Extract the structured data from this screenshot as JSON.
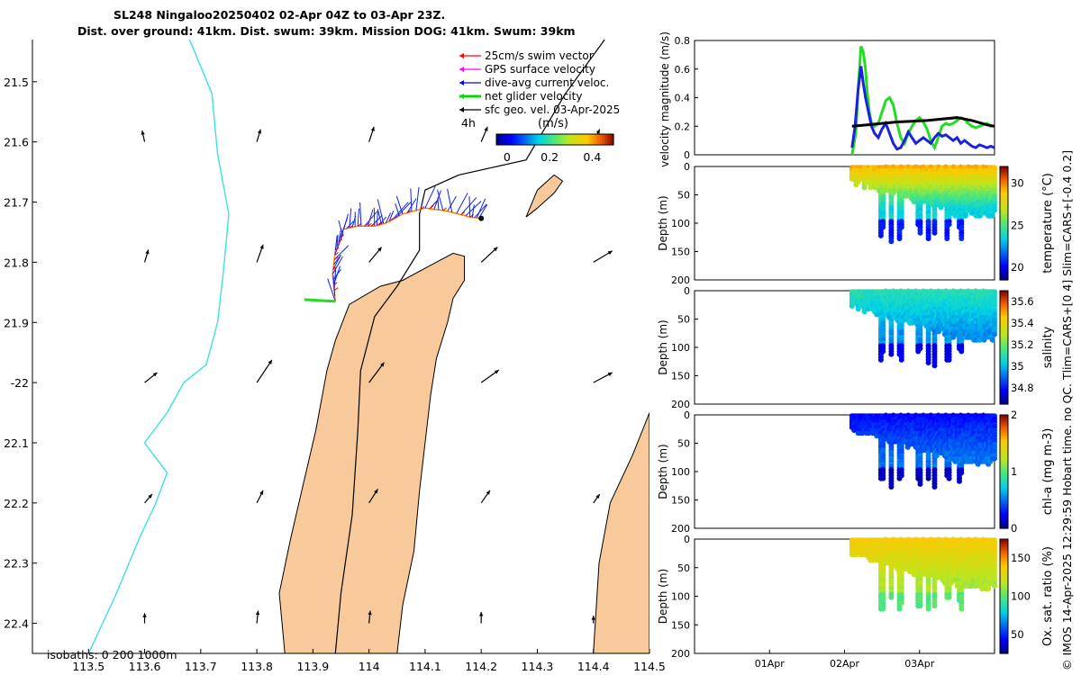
{
  "chart_data": [
    {
      "type": "map",
      "title_line1": "SL248 Ningaloo20250402 02-Apr 04Z to 03-Apr 23Z.",
      "title_line2": "Dist. over ground: 41km. Dist. swum: 39km. Mission DOG: 41km. Swum: 39km",
      "xlim": [
        113.4,
        114.5
      ],
      "ylim": [
        -22.45,
        -21.43
      ],
      "x_ticks": [
        113.5,
        113.6,
        113.7,
        113.8,
        113.9,
        114,
        114.1,
        114.2,
        114.3,
        114.4,
        114.5
      ],
      "x_tick_labels": [
        "113.5",
        "113.6",
        "113.7",
        "113.8",
        "113.9",
        "114",
        "114.1",
        "114.2",
        "114.3",
        "114.4",
        "114.5"
      ],
      "y_ticks": [
        -21.5,
        -21.6,
        -21.7,
        -21.8,
        -21.9,
        -22,
        -22.1,
        -22.2,
        -22.3,
        -22.4
      ],
      "y_tick_labels": [
        "21.5",
        "21.6",
        "21.7",
        "21.8",
        "21.9",
        "-22",
        "22.1",
        "22.2",
        "22.3",
        "22.4"
      ],
      "legend": [
        {
          "label": "25cm/s swim vector",
          "color": "#ff0000"
        },
        {
          "label": "GPS surface velocity",
          "color": "#ff00ff"
        },
        {
          "label": "dive-avg current veloc.",
          "color": "#0000ff"
        },
        {
          "label": "net glider velocity",
          "color": "#00dd00"
        },
        {
          "label": "sfc geo. vel. 03-Apr-2025",
          "color": "#000000"
        }
      ],
      "legend_note": "4h",
      "colorbar_label": "(m/s)",
      "colorbar_ticks": [
        0,
        0.2,
        0.4
      ],
      "colorbar_tick_labels": [
        "0",
        "0.2",
        "0.4"
      ],
      "colorbar_range": [
        -0.05,
        0.5
      ],
      "isobath_label": "isobaths: 0   200  1000m",
      "coastline_color": "#f8c99a",
      "isobath_200_color": "#000000",
      "isobath_1000_color": "#3ee0e0",
      "coast_polygon": [
        [
          113.85,
          -22.45
        ],
        [
          113.84,
          -22.35
        ],
        [
          113.86,
          -22.26
        ],
        [
          113.88,
          -22.18
        ],
        [
          113.905,
          -22.08
        ],
        [
          113.925,
          -21.98
        ],
        [
          113.94,
          -21.93
        ],
        [
          113.965,
          -21.87
        ],
        [
          114.02,
          -21.84
        ],
        [
          114.06,
          -21.83
        ],
        [
          114.11,
          -21.805
        ],
        [
          114.15,
          -21.785
        ],
        [
          114.17,
          -21.79
        ],
        [
          114.17,
          -21.83
        ],
        [
          114.15,
          -21.86
        ],
        [
          114.14,
          -21.9
        ],
        [
          114.12,
          -21.96
        ],
        [
          114.11,
          -22.02
        ],
        [
          114.1,
          -22.1
        ],
        [
          114.09,
          -22.18
        ],
        [
          114.08,
          -22.28
        ],
        [
          114.06,
          -22.37
        ],
        [
          114.05,
          -22.45
        ]
      ],
      "island_polygon": [
        [
          114.28,
          -21.725
        ],
        [
          114.3,
          -21.68
        ],
        [
          114.33,
          -21.655
        ],
        [
          114.345,
          -21.665
        ],
        [
          114.33,
          -21.685
        ],
        [
          114.3,
          -21.71
        ]
      ],
      "isobath_200": [
        [
          113.94,
          -22.45
        ],
        [
          113.95,
          -22.35
        ],
        [
          113.97,
          -22.22
        ],
        [
          113.98,
          -22.08
        ],
        [
          113.985,
          -21.98
        ],
        [
          114.01,
          -21.89
        ],
        [
          114.05,
          -21.84
        ],
        [
          114.09,
          -21.78
        ],
        [
          114.09,
          -21.72
        ],
        [
          114.1,
          -21.68
        ],
        [
          114.16,
          -21.655
        ],
        [
          114.28,
          -21.63
        ],
        [
          114.35,
          -21.52
        ],
        [
          114.42,
          -21.43
        ]
      ],
      "isobath_1000": [
        [
          113.5,
          -22.45
        ],
        [
          113.55,
          -22.35
        ],
        [
          113.59,
          -22.26
        ],
        [
          113.62,
          -22.2
        ],
        [
          113.64,
          -22.15
        ],
        [
          113.6,
          -22.1
        ],
        [
          113.64,
          -22.05
        ],
        [
          113.67,
          -22.0
        ],
        [
          113.71,
          -21.97
        ],
        [
          113.73,
          -21.9
        ],
        [
          113.74,
          -21.82
        ],
        [
          113.75,
          -21.72
        ],
        [
          113.73,
          -21.62
        ],
        [
          113.72,
          -21.52
        ],
        [
          113.68,
          -21.43
        ]
      ],
      "glider_track": [
        [
          113.94,
          -21.865
        ],
        [
          113.935,
          -21.82
        ],
        [
          113.94,
          -21.78
        ],
        [
          113.955,
          -21.745
        ],
        [
          113.98,
          -21.74
        ],
        [
          114.01,
          -21.74
        ],
        [
          114.03,
          -21.735
        ],
        [
          114.06,
          -21.72
        ],
        [
          114.1,
          -21.71
        ],
        [
          114.14,
          -21.715
        ],
        [
          114.18,
          -21.725
        ],
        [
          114.2,
          -21.727
        ]
      ],
      "net_velocity_end": [
        113.885,
        -21.862
      ],
      "geo_velocity_grid": {
        "x": [
          113.6,
          113.8,
          114,
          114.2,
          114.4
        ],
        "y": [
          -21.6,
          -21.8,
          -22.0,
          -22.2,
          -22.4
        ],
        "u": [
          [
            -0.02,
            0.03,
            0.04,
            0.05,
            0.05
          ],
          [
            0.03,
            0.05,
            0.1,
            0.13,
            0.15
          ],
          [
            0.1,
            0.12,
            0.12,
            0.14,
            0.15
          ],
          [
            0.06,
            0.05,
            0.07,
            0.07,
            0.05
          ],
          [
            0.0,
            0.01,
            0.01,
            0.0,
            0.0
          ]
        ],
        "v": [
          [
            0.09,
            0.1,
            0.12,
            0.12,
            0.1
          ],
          [
            0.1,
            0.14,
            0.12,
            0.12,
            0.09
          ],
          [
            0.08,
            0.18,
            0.16,
            0.1,
            0.08
          ],
          [
            0.07,
            0.1,
            0.11,
            0.1,
            0.07
          ],
          [
            0.08,
            0.1,
            0.1,
            0.09,
            0.06
          ]
        ]
      }
    },
    {
      "type": "line",
      "ylabel": "velocity magnitude (m/s)",
      "ylim": [
        0,
        0.8
      ],
      "y_ticks": [
        0,
        0.2,
        0.4,
        0.6,
        0.8
      ],
      "y_tick_labels": [
        "0",
        "0.2",
        "0.4",
        "0.6",
        "0.8"
      ],
      "time_range_days": [
        0,
        4
      ],
      "series": [
        {
          "name": "net glider velocity",
          "color": "#22dd22",
          "x": [
            2.1,
            2.15,
            2.18,
            2.22,
            2.25,
            2.28,
            2.3,
            2.33,
            2.36,
            2.4,
            2.45,
            2.5,
            2.55,
            2.6,
            2.65,
            2.7,
            2.75,
            2.8,
            2.85,
            2.9,
            2.95,
            3.0,
            3.05,
            3.1,
            3.15,
            3.2,
            3.25,
            3.3,
            3.35,
            3.4,
            3.45,
            3.5,
            3.55,
            3.6,
            3.65,
            3.7,
            3.75,
            3.8,
            3.85,
            3.9,
            3.95,
            4.0
          ],
          "y": [
            0.0,
            0.15,
            0.45,
            0.76,
            0.72,
            0.6,
            0.45,
            0.3,
            0.22,
            0.2,
            0.22,
            0.3,
            0.38,
            0.4,
            0.35,
            0.22,
            0.12,
            0.08,
            0.15,
            0.2,
            0.24,
            0.26,
            0.23,
            0.18,
            0.1,
            0.05,
            0.12,
            0.2,
            0.22,
            0.21,
            0.22,
            0.24,
            0.26,
            0.25,
            0.22,
            0.2,
            0.19,
            0.2,
            0.21,
            0.22,
            0.2,
            0.2
          ]
        },
        {
          "name": "dive-avg current veloc.",
          "color": "#1a22dd",
          "x": [
            2.1,
            2.14,
            2.18,
            2.22,
            2.25,
            2.28,
            2.32,
            2.36,
            2.4,
            2.45,
            2.5,
            2.55,
            2.6,
            2.65,
            2.7,
            2.75,
            2.8,
            2.85,
            2.9,
            2.95,
            3.0,
            3.05,
            3.1,
            3.15,
            3.2,
            3.25,
            3.3,
            3.35,
            3.4,
            3.45,
            3.5,
            3.55,
            3.6,
            3.65,
            3.7,
            3.75,
            3.8,
            3.85,
            3.9,
            3.95,
            4.0
          ],
          "y": [
            0.05,
            0.2,
            0.45,
            0.62,
            0.5,
            0.4,
            0.3,
            0.2,
            0.15,
            0.12,
            0.18,
            0.22,
            0.15,
            0.08,
            0.04,
            0.05,
            0.1,
            0.16,
            0.12,
            0.08,
            0.1,
            0.12,
            0.1,
            0.08,
            0.12,
            0.15,
            0.13,
            0.14,
            0.12,
            0.1,
            0.12,
            0.08,
            0.1,
            0.08,
            0.06,
            0.05,
            0.07,
            0.06,
            0.05,
            0.06,
            0.05
          ]
        },
        {
          "name": "sfc geo. vel.",
          "color": "#000000",
          "x": [
            2.1,
            2.3,
            2.5,
            2.7,
            2.9,
            3.1,
            3.3,
            3.5,
            3.7,
            3.9,
            4.0
          ],
          "y": [
            0.2,
            0.21,
            0.22,
            0.23,
            0.235,
            0.24,
            0.25,
            0.26,
            0.24,
            0.21,
            0.2
          ]
        }
      ]
    },
    {
      "type": "scatter-section",
      "ylabel": "Depth (m)",
      "colorbar_label": "temperature (°C)",
      "ylim": [
        200,
        0
      ],
      "y_ticks": [
        0,
        50,
        100,
        150,
        200
      ],
      "y_tick_labels": [
        "0",
        "50",
        "100",
        "150",
        "200"
      ],
      "clim": [
        18.5,
        32
      ],
      "colorbar_ticks": [
        20,
        25,
        30
      ],
      "colorbar_tick_labels": [
        "20",
        "25",
        "30"
      ],
      "surface_value": 29.5,
      "deep_value": 23.5,
      "spike_value": 20.5,
      "spikes_x": [
        2.5,
        2.62,
        2.75,
        3.0,
        3.12,
        3.2,
        3.38,
        3.55
      ]
    },
    {
      "type": "scatter-section",
      "ylabel": "Depth (m)",
      "colorbar_label": "salinity",
      "ylim": [
        200,
        0
      ],
      "y_ticks": [
        0,
        50,
        100,
        150,
        200
      ],
      "y_tick_labels": [
        "0",
        "50",
        "100",
        "150",
        "200"
      ],
      "clim": [
        34.65,
        35.7
      ],
      "colorbar_ticks": [
        34.8,
        35,
        35.2,
        35.4,
        35.6
      ],
      "colorbar_tick_labels": [
        "34.8",
        "35",
        "35.2",
        "35.4",
        "35.6"
      ],
      "surface_value": 35.1,
      "deep_value": 34.95,
      "spike_value": 34.75,
      "spikes_x": [
        2.5,
        2.62,
        2.75,
        3.0,
        3.12,
        3.2,
        3.38,
        3.55
      ]
    },
    {
      "type": "scatter-section",
      "ylabel": "Depth (m)",
      "colorbar_label": "chl-a (mg m-3)",
      "ylim": [
        200,
        0
      ],
      "y_ticks": [
        0,
        50,
        100,
        150,
        200
      ],
      "y_tick_labels": [
        "0",
        "50",
        "100",
        "150",
        "200"
      ],
      "clim": [
        0,
        2
      ],
      "colorbar_ticks": [
        0,
        1,
        2
      ],
      "colorbar_tick_labels": [
        "0",
        "1",
        "2"
      ],
      "surface_value": 0.25,
      "deep_value": 0.5,
      "spike_value": 0.1,
      "spikes_x": [
        2.5,
        2.62,
        2.75,
        3.0,
        3.12,
        3.2,
        3.38,
        3.55
      ]
    },
    {
      "type": "scatter-section",
      "ylabel": "Depth (m)",
      "colorbar_label": "Ox. sat. ratio (%)",
      "ylim": [
        200,
        0
      ],
      "y_ticks": [
        0,
        50,
        100,
        150,
        200
      ],
      "y_tick_labels": [
        "0",
        "50",
        "100",
        "150",
        "200"
      ],
      "clim": [
        25,
        175
      ],
      "colorbar_ticks": [
        50,
        100,
        150
      ],
      "colorbar_tick_labels": [
        "50",
        "100",
        "150"
      ],
      "surface_value": 140,
      "deep_value": 115,
      "spike_value": 100,
      "spikes_x": [
        2.5,
        2.62,
        2.75,
        3.0,
        3.12,
        3.2,
        3.38,
        3.55
      ],
      "x_ticks": [
        1,
        2,
        3
      ],
      "x_tick_labels": [
        "01Apr",
        "02Apr",
        "03Apr"
      ]
    }
  ],
  "credit": "© IMOS 14-Apr-2025 12:29:59 Hobart time. no QC. Tlim=CARS+[0 4] Slim=CARS+[-0.4 0.2]"
}
